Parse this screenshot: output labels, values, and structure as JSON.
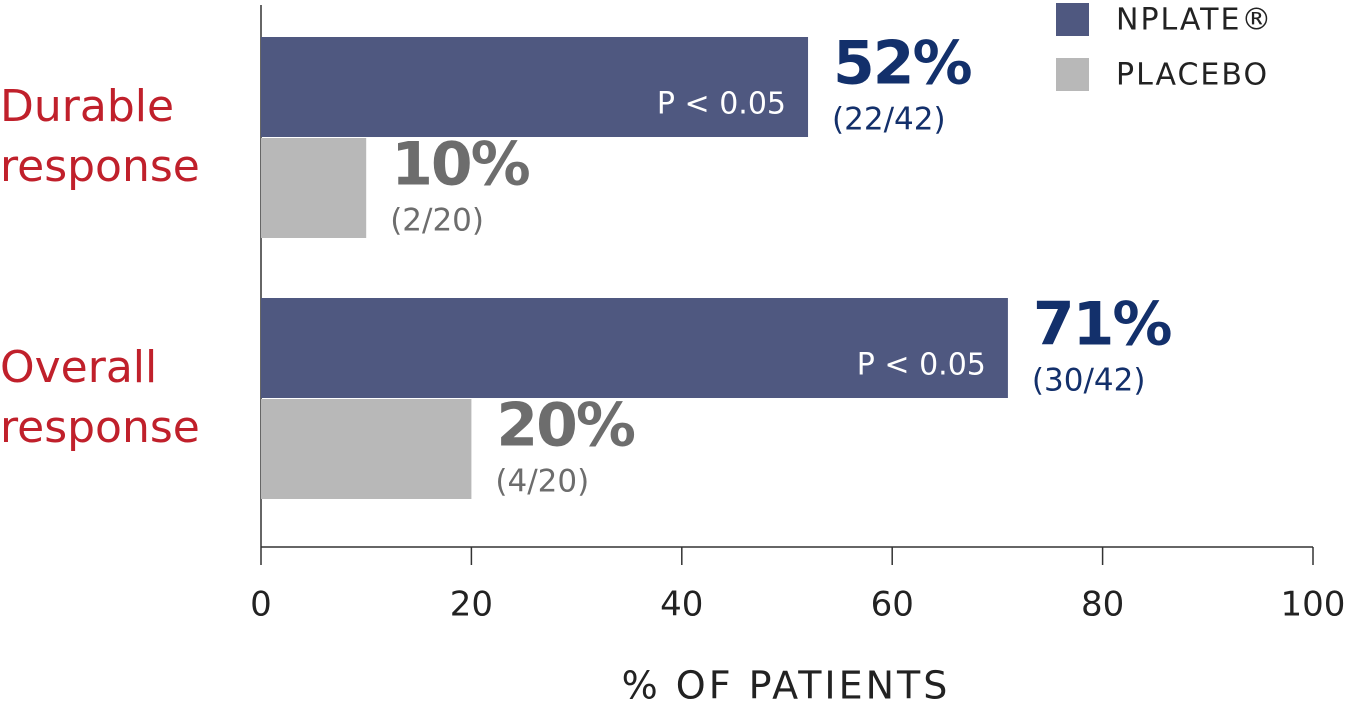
{
  "chart_data": {
    "type": "bar",
    "orientation": "horizontal",
    "categories": [
      "Durable response",
      "Overall response"
    ],
    "series": [
      {
        "name": "NPLATE®",
        "color": "#4f5880",
        "label_color": "#13306b",
        "values": [
          52,
          71
        ],
        "value_labels": [
          "52%",
          "71%"
        ],
        "fractions": [
          "(22/42)",
          "(30/42)"
        ],
        "annotations": [
          "P < 0.05",
          "P < 0.05"
        ]
      },
      {
        "name": "PLACEBO",
        "color": "#b8b8b8",
        "label_color": "#6d6d6d",
        "values": [
          10,
          20
        ],
        "value_labels": [
          "10%",
          "20%"
        ],
        "fractions": [
          "(2/20)",
          "(4/20)"
        ]
      }
    ],
    "category_color": "#c0202b",
    "xlabel": "% OF PATIENTS",
    "xlim": [
      0,
      100
    ],
    "xticks": [
      0,
      20,
      40,
      60,
      80,
      100
    ],
    "legend": "top-right"
  }
}
